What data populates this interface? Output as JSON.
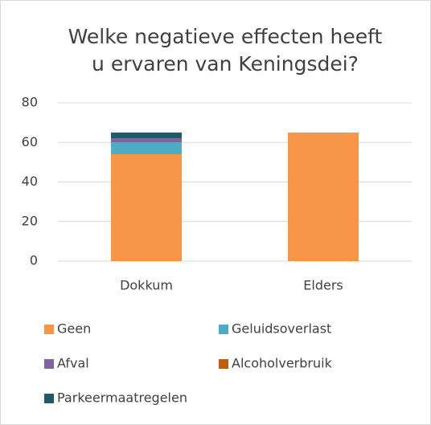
{
  "chart_data": {
    "type": "stacked_bar",
    "title": [
      "Welke negatieve effecten heeft",
      "u ervaren van Keningsdei?"
    ],
    "categories": [
      "Dokkum",
      "Elders"
    ],
    "series": [
      {
        "name": "Geen",
        "color": "#f79646",
        "values": [
          54,
          65
        ]
      },
      {
        "name": "Geluidsoverlast",
        "color": "#4bacc6",
        "values": [
          6,
          0
        ]
      },
      {
        "name": "Afval",
        "color": "#8064a2",
        "values": [
          2,
          0
        ]
      },
      {
        "name": "Alcoholverbruik",
        "color": "#c55a11",
        "values": [
          0,
          0
        ]
      },
      {
        "name": "Parkeermaatregelen",
        "color": "#215968",
        "values": [
          3,
          0
        ]
      }
    ],
    "ylim": [
      0,
      80
    ],
    "yticks": [
      0,
      20,
      40,
      60,
      80
    ],
    "grid": true,
    "legend": "bottom"
  }
}
